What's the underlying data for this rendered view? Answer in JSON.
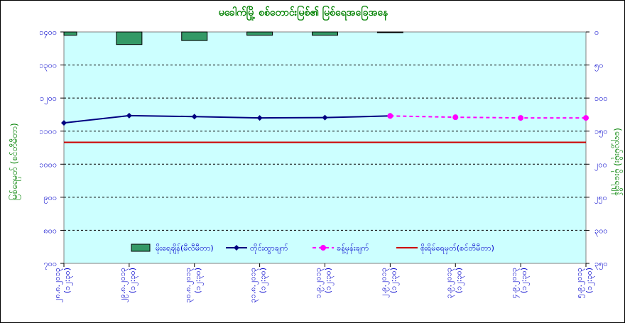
{
  "chart_data": {
    "type": "bar+line",
    "title": "မခေါက်မြို့ စစ်တောင်းမြစ်၏ မြစ်ရေအခြေအနေ",
    "ylabel_left": "မြစ်ရေမှတ် (စင်တီမီတာ)",
    "ylabel_right": "(ရေလွှမ်းမိုး) မိုးရေချိန်",
    "categories": [
      "၂၈.၈.၂၀၁၃",
      "၂၉.၈.၂၀၁၃",
      "၃၀.၈.၂၀၁၃",
      "၃၁.၈.၂၀၁၃",
      "၁.၉.၂၀၁၃",
      "၂.၉.၂၀၁၃",
      "၃.၉.၂၀၁၃",
      "၄.၉.၂၀၁၃",
      "၅.၉.၂၀၁၃"
    ],
    "category_times": [
      "(၁၂:၃၀)",
      "(၁၂:၃၀)",
      "(၁၂:၃၀)",
      "(၁၂:၃၀)",
      "(၁၂:၃၀)",
      "(၁၂:၃၀)",
      "(၁၂:၃၀)",
      "(၁၂:၃၀)",
      "(၁၂:၃၀)"
    ],
    "ylim_left": [
      700,
      1400
    ],
    "yticks_left": [
      "၇၀၀",
      "၈၀၀",
      "၉၀၀",
      "၁၀၀၀",
      "၁၁၀၀",
      "၁၂၀၀",
      "၁၃၀၀",
      "၁၄၀၀"
    ],
    "ylim_right": [
      0,
      350
    ],
    "yticks_right": [
      "၀",
      "၅၀",
      "၁၀၀",
      "၁၅၀",
      "၂၀၀",
      "၂၅၀",
      "၃၀၀",
      "၃၅၀"
    ],
    "right_axis_inverted": true,
    "grid": "horizontal dashed",
    "series": [
      {
        "name": "မိုးရေချိန်(မီလီမီတာ)",
        "kind": "bar",
        "axis": "right",
        "color": "#339966",
        "values": [
          5,
          19,
          13,
          5,
          5,
          0.5,
          null,
          null,
          null
        ]
      },
      {
        "name": "တိုင်းထွာချက်",
        "kind": "line",
        "axis": "left",
        "color": "#000080",
        "marker": "diamond",
        "values": [
          1125,
          1147,
          1144,
          1140,
          1141,
          1146,
          null,
          null,
          null
        ]
      },
      {
        "name": "ခန့်မှန်းချက်",
        "kind": "line-dashed",
        "axis": "left",
        "color": "#ff00ff",
        "marker": "circle",
        "values": [
          null,
          null,
          null,
          null,
          null,
          1146,
          1142,
          1140,
          1140
        ]
      },
      {
        "name": "စိုးရိမ်ရေမှတ်(စင်တီမီတာ)",
        "kind": "hline",
        "axis": "left",
        "color": "#cc0000",
        "value": 1066
      }
    ],
    "legend_position": "inside-bottom"
  },
  "colors": {
    "plot_bg": "#ccffff",
    "title": "#008000",
    "axis_text": "#0000cc"
  }
}
